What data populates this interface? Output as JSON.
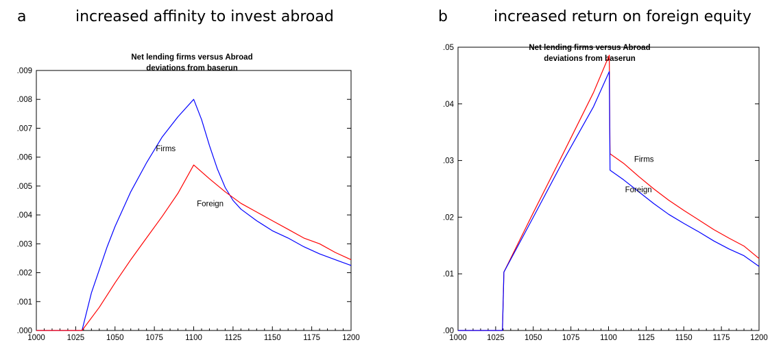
{
  "panels": [
    {
      "letter": "a",
      "heading": "increased affinity to invest abroad",
      "chart_title_line1": "Net lending firms versus Abroad",
      "chart_title_line2": "deviations from baserun"
    },
    {
      "letter": "b",
      "heading": "increased return on foreign equity",
      "chart_title_line1": "Net lending firms versus Abroad",
      "chart_title_line2": "deviations from baserun"
    }
  ],
  "chart_data": [
    {
      "type": "line",
      "title": "Net lending firms versus Abroad deviations from baserun",
      "xlim": [
        1000,
        1200
      ],
      "ylim": [
        0,
        0.009
      ],
      "x_ticks": [
        1000,
        1025,
        1050,
        1075,
        1100,
        1125,
        1150,
        1175,
        1200
      ],
      "x_tick_labels": [
        "1000",
        "1025",
        "1050",
        "1075",
        "1100",
        "1125",
        "1150",
        "1175",
        "1200"
      ],
      "y_ticks": [
        0,
        0.001,
        0.002,
        0.003,
        0.004,
        0.005,
        0.006,
        0.007,
        0.008,
        0.009
      ],
      "y_tick_labels": [
        ".000",
        ".001",
        ".002",
        ".003",
        ".004",
        ".005",
        ".006",
        ".007",
        ".008",
        ".009"
      ],
      "series": [
        {
          "name": "Firms",
          "color": "#0000ff",
          "x": [
            1000,
            1029,
            1035,
            1040,
            1045,
            1050,
            1060,
            1070,
            1080,
            1090,
            1100,
            1105,
            1110,
            1115,
            1120,
            1125,
            1130,
            1140,
            1150,
            1160,
            1170,
            1180,
            1190,
            1200
          ],
          "y": [
            0,
            0,
            0.0013,
            0.0021,
            0.0029,
            0.0036,
            0.0048,
            0.0058,
            0.0067,
            0.0074,
            0.008,
            0.0073,
            0.0064,
            0.0056,
            0.00495,
            0.0045,
            0.0042,
            0.0038,
            0.00345,
            0.0032,
            0.0029,
            0.00265,
            0.00245,
            0.00225
          ]
        },
        {
          "name": "Foreign",
          "color": "#ff0000",
          "x": [
            1000,
            1029,
            1040,
            1050,
            1060,
            1070,
            1080,
            1090,
            1100,
            1110,
            1120,
            1130,
            1140,
            1150,
            1160,
            1170,
            1180,
            1190,
            1200
          ],
          "y": [
            0,
            0,
            0.0008,
            0.00165,
            0.00245,
            0.0032,
            0.00395,
            0.00475,
            0.00573,
            0.00525,
            0.0048,
            0.0044,
            0.0041,
            0.0038,
            0.0035,
            0.0032,
            0.003,
            0.0027,
            0.00245
          ]
        }
      ],
      "annotations": [
        {
          "text": "Firms",
          "x": 1076,
          "y": 0.0062
        },
        {
          "text": "Foreign",
          "x": 1102,
          "y": 0.0043
        }
      ],
      "grid": false
    },
    {
      "type": "line",
      "title": "Net lending firms versus Abroad deviations from baserun",
      "xlim": [
        1000,
        1200
      ],
      "ylim": [
        0,
        0.05
      ],
      "x_ticks": [
        1000,
        1025,
        1050,
        1075,
        1100,
        1125,
        1150,
        1175,
        1200
      ],
      "x_tick_labels": [
        "1000",
        "1025",
        "1050",
        "1075",
        "1100",
        "1125",
        "1150",
        "1175",
        "1200"
      ],
      "y_ticks": [
        0,
        0.01,
        0.02,
        0.03,
        0.04,
        0.05
      ],
      "y_tick_labels": [
        ".00",
        ".01",
        ".02",
        ".03",
        ".04",
        ".05"
      ],
      "series": [
        {
          "name": "Firms",
          "color": "#ff0000",
          "x": [
            1000,
            1029.5,
            1030.5,
            1050,
            1070,
            1090,
            1100.5,
            1101,
            1110,
            1120,
            1130,
            1140,
            1150,
            1160,
            1170,
            1180,
            1190,
            1200
          ],
          "y": [
            0,
            0,
            0.0103,
            0.0208,
            0.0313,
            0.042,
            0.0486,
            0.0312,
            0.0295,
            0.0272,
            0.025,
            0.023,
            0.0212,
            0.0195,
            0.0178,
            0.0163,
            0.0149,
            0.0127
          ]
        },
        {
          "name": "Foreign",
          "color": "#0000ff",
          "x": [
            1000,
            1029.5,
            1030.5,
            1050,
            1070,
            1090,
            1100.5,
            1101,
            1110,
            1120,
            1130,
            1140,
            1150,
            1160,
            1170,
            1180,
            1190,
            1200
          ],
          "y": [
            0,
            0,
            0.0103,
            0.02,
            0.03,
            0.0395,
            0.0457,
            0.0283,
            0.0266,
            0.0245,
            0.0224,
            0.0205,
            0.0189,
            0.0174,
            0.0158,
            0.0144,
            0.0132,
            0.0113
          ]
        }
      ],
      "annotations": [
        {
          "text": "Firms",
          "x": 1117,
          "y": 0.0298
        },
        {
          "text": "Foreign",
          "x": 1111,
          "y": 0.0244
        }
      ],
      "grid": false
    }
  ]
}
